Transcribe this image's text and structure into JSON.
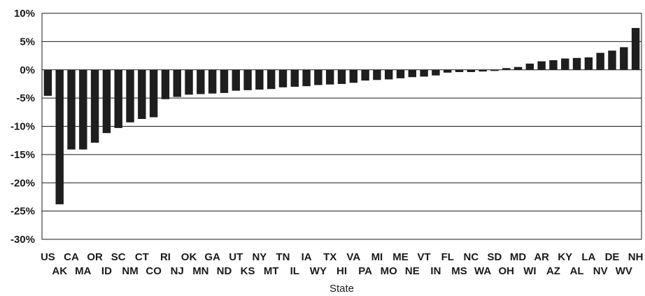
{
  "chart_data": {
    "type": "bar",
    "xlabel": "State",
    "ylabel": "",
    "ylim": [
      -30,
      10
    ],
    "yticks": [
      10,
      5,
      0,
      -5,
      -10,
      -15,
      -20,
      -25,
      -30
    ],
    "ytick_labels": [
      "10%",
      "5%",
      "0%",
      "-5%",
      "-10%",
      "-15%",
      "-20%",
      "-25%",
      "-30%"
    ],
    "grid": true,
    "legend": "none",
    "bar_color": "#1e1e1e",
    "categories": [
      "US",
      "AK",
      "CA",
      "MA",
      "OR",
      "ID",
      "SC",
      "NM",
      "CT",
      "CO",
      "RI",
      "NJ",
      "OK",
      "MN",
      "GA",
      "ND",
      "UT",
      "KS",
      "NY",
      "MT",
      "TN",
      "IL",
      "IA",
      "WY",
      "TX",
      "HI",
      "VA",
      "PA",
      "MI",
      "MO",
      "ME",
      "NE",
      "VT",
      "IN",
      "FL",
      "MS",
      "NC",
      "WA",
      "SD",
      "OH",
      "MD",
      "WI",
      "AR",
      "AZ",
      "KY",
      "AL",
      "LA",
      "NV",
      "DE",
      "WV",
      "NH"
    ],
    "values": [
      -4.6,
      -23.8,
      -14.1,
      -14.1,
      -12.9,
      -11.2,
      -10.3,
      -9.3,
      -8.7,
      -8.4,
      -5.2,
      -4.8,
      -4.4,
      -4.3,
      -4.2,
      -4.1,
      -3.7,
      -3.6,
      -3.5,
      -3.4,
      -3.1,
      -3.0,
      -2.9,
      -2.7,
      -2.6,
      -2.5,
      -2.3,
      -1.9,
      -1.8,
      -1.7,
      -1.5,
      -1.3,
      -1.2,
      -1.0,
      -0.5,
      -0.4,
      -0.4,
      -0.3,
      -0.2,
      0.3,
      0.5,
      1.1,
      1.5,
      1.7,
      2.0,
      2.1,
      2.2,
      3.0,
      3.4,
      4.0,
      7.4
    ]
  }
}
